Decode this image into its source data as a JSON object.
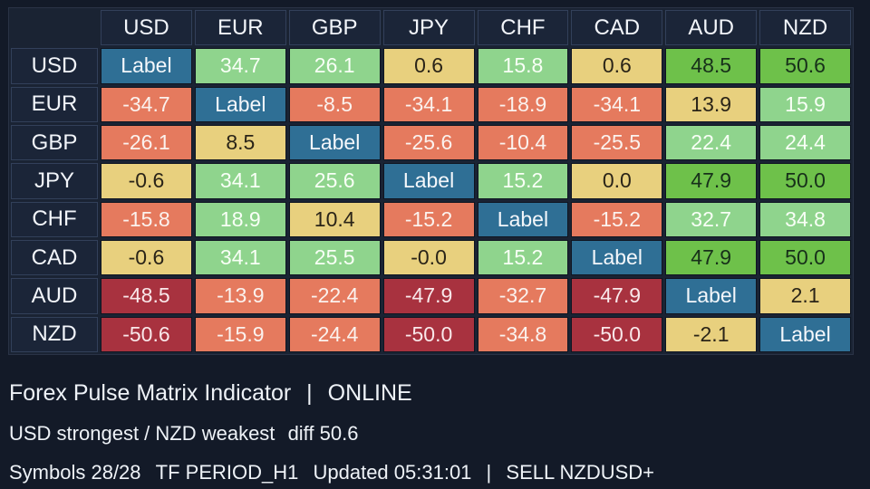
{
  "matrix": {
    "columns": [
      "USD",
      "EUR",
      "GBP",
      "JPY",
      "CHF",
      "CAD",
      "AUD",
      "NZD"
    ],
    "rows": [
      {
        "label": "USD",
        "cells": [
          "Label",
          "34.7",
          "26.1",
          "0.6",
          "15.8",
          "0.6",
          "48.5",
          "50.6"
        ]
      },
      {
        "label": "EUR",
        "cells": [
          "-34.7",
          "Label",
          "-8.5",
          "-34.1",
          "-18.9",
          "-34.1",
          "13.9",
          "15.9"
        ]
      },
      {
        "label": "GBP",
        "cells": [
          "-26.1",
          "8.5",
          "Label",
          "-25.6",
          "-10.4",
          "-25.5",
          "22.4",
          "24.4"
        ]
      },
      {
        "label": "JPY",
        "cells": [
          "-0.6",
          "34.1",
          "25.6",
          "Label",
          "15.2",
          "0.0",
          "47.9",
          "50.0"
        ]
      },
      {
        "label": "CHF",
        "cells": [
          "-15.8",
          "18.9",
          "10.4",
          "-15.2",
          "Label",
          "-15.2",
          "32.7",
          "34.8"
        ]
      },
      {
        "label": "CAD",
        "cells": [
          "-0.6",
          "34.1",
          "25.5",
          "-0.0",
          "15.2",
          "Label",
          "47.9",
          "50.0"
        ]
      },
      {
        "label": "AUD",
        "cells": [
          "-48.5",
          "-13.9",
          "-22.4",
          "-47.9",
          "-32.7",
          "-47.9",
          "Label",
          "2.1"
        ]
      },
      {
        "label": "NZD",
        "cells": [
          "-50.6",
          "-15.9",
          "-24.4",
          "-50.0",
          "-34.8",
          "-50.0",
          "-2.1",
          "Label"
        ]
      }
    ],
    "colors": {
      "diag": "#2f6f95",
      "pos_strong": "#6ec14a",
      "pos_mid": "#8fd48d",
      "neutral": "#e8d07e",
      "neg_mid": "#e57a5e",
      "neg_strong": "#a8323f"
    }
  },
  "status": {
    "indicator_name": "Forex Pulse Matrix Indicator",
    "separator": "|",
    "connection": "ONLINE",
    "strength_summary": "USD strongest / NZD weakest",
    "diff_text": "diff 50.6",
    "symbols_text": "Symbols 28/28",
    "timeframe_text": "TF PERIOD_H1",
    "updated_text": "Updated 05:31:01",
    "signal_text": "SELL NZDUSD+"
  }
}
